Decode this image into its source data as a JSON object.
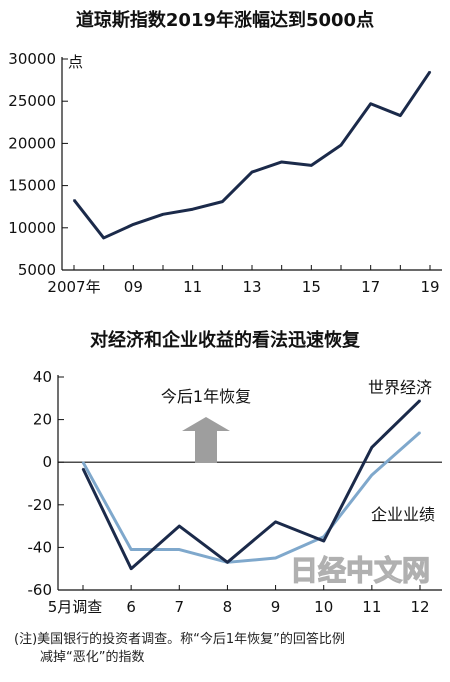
{
  "chart_data": [
    {
      "type": "line",
      "title": "道琼斯指数2019年涨幅达到5000点",
      "unit_label": "点",
      "ylim": [
        5000,
        30000
      ],
      "y_ticks": [
        "30000",
        "25000",
        "20000",
        "15000",
        "10000",
        "5000"
      ],
      "x_tick_labels": [
        "2007年",
        "09",
        "11",
        "13",
        "15",
        "17",
        "19"
      ],
      "x": [
        2007,
        2008,
        2009,
        2010,
        2011,
        2012,
        2013,
        2014,
        2015,
        2016,
        2017,
        2018,
        2019
      ],
      "series": [
        {
          "values": [
            13300,
            8800,
            10400,
            11600,
            12200,
            13100,
            16600,
            17800,
            17400,
            19800,
            24700,
            23300,
            28500
          ]
        }
      ],
      "grid": false
    },
    {
      "type": "line",
      "title": "对经济和企业收益的看法迅速恢复",
      "ylim": [
        -60,
        40
      ],
      "y_ticks": [
        "40",
        "20",
        "0",
        "-20",
        "-40",
        "-60"
      ],
      "x_tick_labels": [
        "5月调查",
        "6",
        "7",
        "8",
        "9",
        "10",
        "11",
        "12"
      ],
      "series": [
        {
          "name": "世界经济",
          "color": "#1b2a4a",
          "values": [
            -3,
            -50,
            -30,
            -47,
            -28,
            -37,
            7,
            29
          ]
        },
        {
          "name": "企业业绩",
          "color": "#7fa8cc",
          "values": [
            0,
            -41,
            -41,
            -47,
            -45,
            -35,
            -6,
            14
          ]
        }
      ],
      "annotation": "今后1年恢复",
      "grid": false
    }
  ],
  "note_line1": "(注)美国银行的投资者调查。称“今后1年恢复”的回答比例",
  "note_line2": "减掉“恶化”的指数",
  "watermark": "日经中文网",
  "colors": {
    "line_dark": "#1b2a4a",
    "line_light": "#7fa8cc",
    "arrow": "#9e9e9e"
  }
}
